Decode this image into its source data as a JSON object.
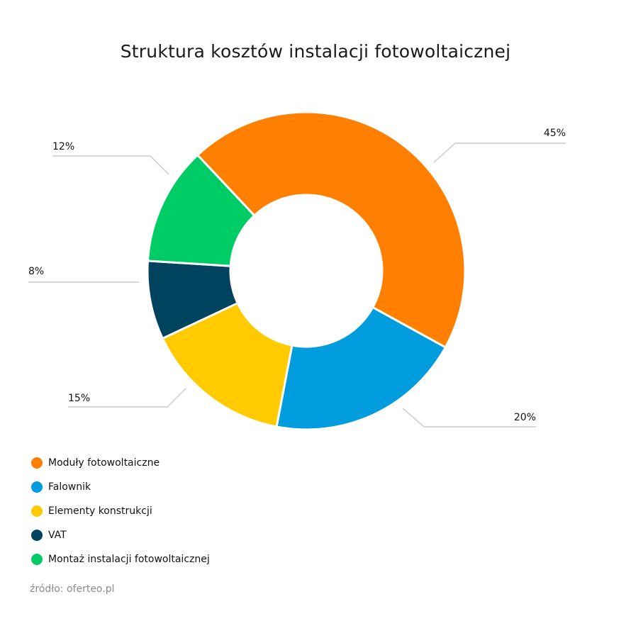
{
  "chart_data": {
    "type": "pie",
    "title": "Struktura kosztów instalacji fotowoltaicznej",
    "categories": [
      "Moduły fotowoltaiczne",
      "Falownik",
      "Elementy konstrukcji",
      "VAT",
      "Montaż instalacji fotowoltaicznej"
    ],
    "values": [
      45,
      20,
      15,
      8,
      12
    ],
    "value_labels": [
      "45%",
      "20%",
      "15%",
      "8%",
      "12%"
    ],
    "colors": [
      "#FF7F00",
      "#009CDE",
      "#FFCB00",
      "#00435F",
      "#00CC66"
    ],
    "legend_placement": "bottom-left",
    "donut": true
  },
  "source": "źródło: oferteo.pl"
}
